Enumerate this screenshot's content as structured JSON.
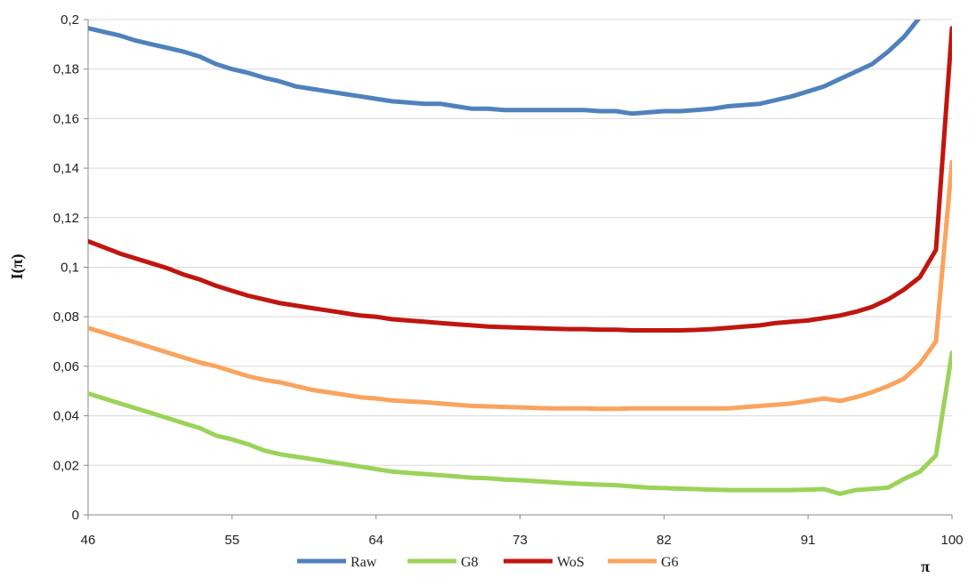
{
  "chart_data": {
    "type": "line",
    "title": "",
    "xlabel": "π",
    "ylabel": "I(π)",
    "xlim": [
      46,
      100
    ],
    "ylim": [
      0,
      0.2
    ],
    "xticks": [
      46,
      55,
      64,
      73,
      82,
      91,
      100
    ],
    "xtick_labels": [
      "46",
      "55",
      "64",
      "73",
      "82",
      "91",
      "100"
    ],
    "yticks": [
      0,
      0.02,
      0.04,
      0.06,
      0.08,
      0.1,
      0.12,
      0.14,
      0.16,
      0.18,
      0.2
    ],
    "ytick_labels": [
      "0",
      "0,02",
      "0,04",
      "0,06",
      "0,08",
      "0,1",
      "0,12",
      "0,14",
      "0,16",
      "0,18",
      "0,2"
    ],
    "grid": "horizontal",
    "legend_position": "bottom",
    "x": [
      46,
      47,
      48,
      49,
      50,
      51,
      52,
      53,
      54,
      55,
      56,
      57,
      58,
      59,
      60,
      61,
      62,
      63,
      64,
      65,
      66,
      67,
      68,
      69,
      70,
      71,
      72,
      73,
      74,
      75,
      76,
      77,
      78,
      79,
      80,
      81,
      82,
      83,
      84,
      85,
      86,
      87,
      88,
      89,
      90,
      91,
      92,
      93,
      94,
      95,
      96,
      97,
      98,
      99,
      100
    ],
    "series": [
      {
        "name": "Raw",
        "color": "#4f81bd",
        "values": [
          0.1965,
          0.195,
          0.1935,
          0.1915,
          0.19,
          0.1885,
          0.187,
          0.185,
          0.182,
          0.18,
          0.1785,
          0.1765,
          0.175,
          0.173,
          0.172,
          0.171,
          0.17,
          0.169,
          0.168,
          0.167,
          0.1665,
          0.166,
          0.166,
          0.165,
          0.164,
          0.164,
          0.1635,
          0.1635,
          0.1635,
          0.1635,
          0.1635,
          0.1635,
          0.163,
          0.163,
          0.162,
          0.1625,
          0.163,
          0.163,
          0.1635,
          0.164,
          0.165,
          0.1655,
          0.166,
          0.1675,
          0.169,
          0.171,
          0.173,
          0.176,
          0.179,
          0.182,
          0.187,
          0.193,
          0.201,
          0.21,
          0.22
        ]
      },
      {
        "name": "G8",
        "color": "#9bd35a",
        "values": [
          0.049,
          0.047,
          0.045,
          0.043,
          0.041,
          0.039,
          0.037,
          0.035,
          0.032,
          0.0305,
          0.0285,
          0.026,
          0.0245,
          0.0235,
          0.0225,
          0.0215,
          0.0205,
          0.0195,
          0.0185,
          0.0175,
          0.017,
          0.0165,
          0.016,
          0.0155,
          0.015,
          0.0148,
          0.0143,
          0.014,
          0.0136,
          0.0132,
          0.0128,
          0.0125,
          0.0122,
          0.012,
          0.0115,
          0.011,
          0.0108,
          0.0106,
          0.0104,
          0.0102,
          0.01,
          0.01,
          0.01,
          0.01,
          0.01,
          0.0102,
          0.0104,
          0.0085,
          0.01,
          0.0105,
          0.011,
          0.0145,
          0.0175,
          0.024,
          0.0655
        ]
      },
      {
        "name": "WoS",
        "color": "#c0160e",
        "values": [
          0.1105,
          0.108,
          0.1055,
          0.1035,
          0.1015,
          0.0995,
          0.097,
          0.095,
          0.0925,
          0.0905,
          0.0885,
          0.087,
          0.0855,
          0.0845,
          0.0835,
          0.0825,
          0.0815,
          0.0805,
          0.08,
          0.079,
          0.0785,
          0.078,
          0.0775,
          0.077,
          0.0765,
          0.076,
          0.0758,
          0.0756,
          0.0754,
          0.0752,
          0.075,
          0.075,
          0.0748,
          0.0748,
          0.0745,
          0.0745,
          0.0745,
          0.0745,
          0.0747,
          0.075,
          0.0755,
          0.076,
          0.0765,
          0.0775,
          0.078,
          0.0785,
          0.0795,
          0.0805,
          0.082,
          0.084,
          0.087,
          0.091,
          0.096,
          0.107,
          0.1965
        ]
      },
      {
        "name": "G6",
        "color": "#f9a45e",
        "values": [
          0.0755,
          0.0735,
          0.0715,
          0.0695,
          0.0675,
          0.0655,
          0.0635,
          0.0615,
          0.06,
          0.058,
          0.056,
          0.0545,
          0.0535,
          0.052,
          0.0505,
          0.0495,
          0.0485,
          0.0475,
          0.047,
          0.0462,
          0.0458,
          0.0455,
          0.045,
          0.0445,
          0.044,
          0.0438,
          0.0436,
          0.0434,
          0.0432,
          0.043,
          0.043,
          0.043,
          0.0428,
          0.0428,
          0.043,
          0.043,
          0.043,
          0.043,
          0.043,
          0.043,
          0.043,
          0.0435,
          0.044,
          0.0445,
          0.045,
          0.046,
          0.047,
          0.046,
          0.0475,
          0.0495,
          0.052,
          0.055,
          0.061,
          0.07,
          0.1425
        ]
      }
    ]
  }
}
